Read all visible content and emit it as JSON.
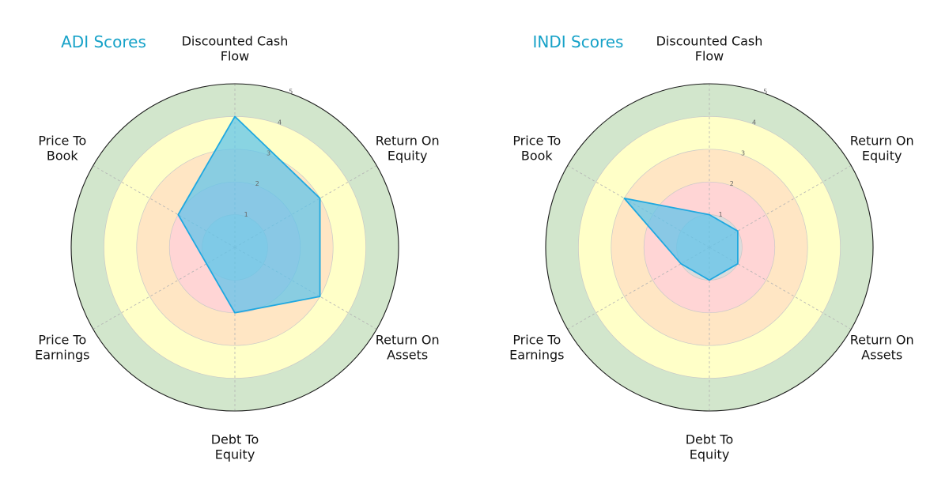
{
  "chart_data": [
    {
      "type": "radar",
      "title": "ADI Scores",
      "axes": [
        "Discounted Cash Flow",
        "Return On Equity",
        "Return On Assets",
        "Debt To Equity",
        "Price To Earnings",
        "Price To Book"
      ],
      "axis_label_lines": [
        [
          "Discounted Cash",
          "Flow"
        ],
        [
          "Return On",
          "Equity"
        ],
        [
          "Return On",
          "Assets"
        ],
        [
          "Debt To",
          "Equity"
        ],
        [
          "Price To",
          "Earnings"
        ],
        [
          "Price To",
          "Book"
        ]
      ],
      "values": [
        4,
        3,
        3,
        2,
        1,
        2
      ],
      "rlim": [
        0,
        5
      ],
      "ticks": [
        "1",
        "2",
        "3",
        "4",
        "5"
      ],
      "line_color": "#1fa8e0",
      "fill_color": "#5bc4ec"
    },
    {
      "type": "radar",
      "title": "INDI Scores",
      "axes": [
        "Discounted Cash Flow",
        "Return On Equity",
        "Return On Assets",
        "Debt To Equity",
        "Price To Earnings",
        "Price To Book"
      ],
      "axis_label_lines": [
        [
          "Discounted Cash",
          "Flow"
        ],
        [
          "Return On",
          "Equity"
        ],
        [
          "Return On",
          "Assets"
        ],
        [
          "Debt To",
          "Equity"
        ],
        [
          "Price To",
          "Earnings"
        ],
        [
          "Price To",
          "Book"
        ]
      ],
      "values": [
        1,
        1,
        1,
        1,
        1,
        3
      ],
      "rlim": [
        0,
        5
      ],
      "ticks": [
        "1",
        "2",
        "3",
        "4",
        "5"
      ],
      "line_color": "#1fa8e0",
      "fill_color": "#5bc4ec"
    }
  ],
  "ring_colors": [
    "#dcdcdc",
    "#ffd5d5",
    "#ffe6c4",
    "#ffffc8",
    "#d2e6cc"
  ]
}
